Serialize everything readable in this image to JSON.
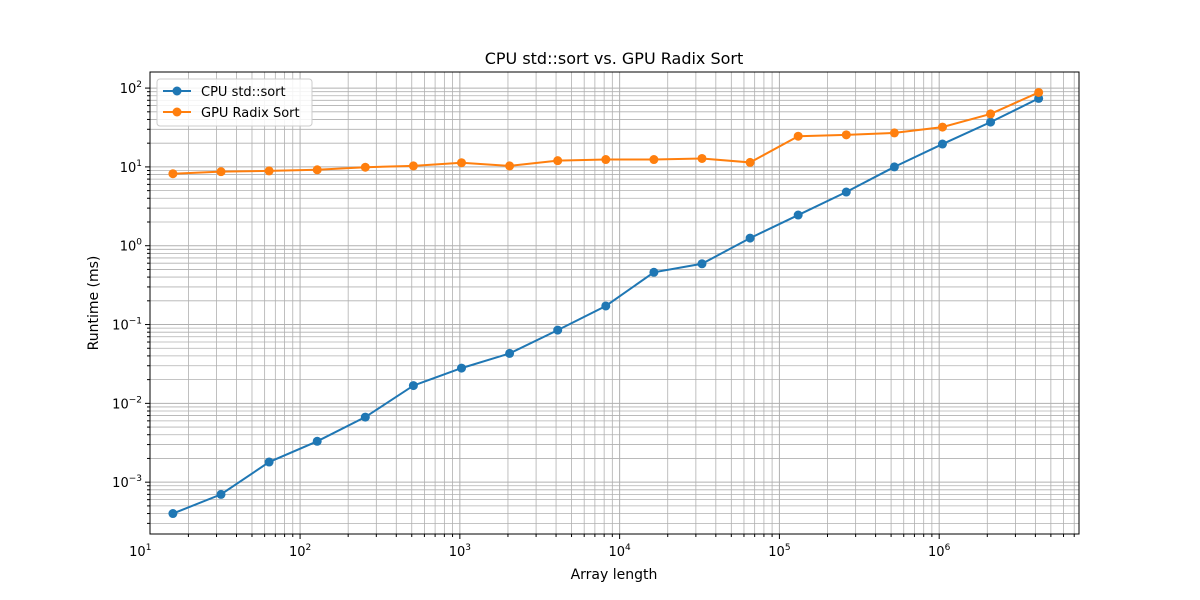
{
  "chart_data": {
    "type": "line",
    "title": "CPU std::sort vs. GPU Radix Sort",
    "xlabel": "Array length",
    "ylabel": "Runtime (ms)",
    "xscale": "log",
    "yscale": "log",
    "xlim": [
      11.5,
      7500000
    ],
    "ylim": [
      0.00022,
      160
    ],
    "grid": "both-major-minor",
    "legend_position": "upper-left",
    "x_ticks": [
      {
        "base": "10",
        "exp": "1"
      },
      {
        "base": "10",
        "exp": "2"
      },
      {
        "base": "10",
        "exp": "3"
      },
      {
        "base": "10",
        "exp": "4"
      },
      {
        "base": "10",
        "exp": "5"
      },
      {
        "base": "10",
        "exp": "6"
      }
    ],
    "y_ticks": [
      {
        "base": "10",
        "exp": "−3"
      },
      {
        "base": "10",
        "exp": "−2"
      },
      {
        "base": "10",
        "exp": "−1"
      },
      {
        "base": "10",
        "exp": "0"
      },
      {
        "base": "10",
        "exp": "1"
      },
      {
        "base": "10",
        "exp": "2"
      }
    ],
    "x": [
      16,
      32,
      64,
      128,
      256,
      512,
      1024,
      2048,
      4096,
      8192,
      16384,
      32768,
      65536,
      131072,
      262144,
      524288,
      1048576,
      2097152,
      4194304
    ],
    "series": [
      {
        "name": "CPU std::sort",
        "color": "#1f77b4",
        "values": [
          0.0004,
          0.0007,
          0.0018,
          0.0033,
          0.0067,
          0.0168,
          0.028,
          0.043,
          0.085,
          0.172,
          0.46,
          0.59,
          1.25,
          2.45,
          4.8,
          10.0,
          19.5,
          37.0,
          74.0
        ]
      },
      {
        "name": "GPU Radix Sort",
        "color": "#ff7f0e",
        "values": [
          8.2,
          8.7,
          8.9,
          9.2,
          9.9,
          10.3,
          11.3,
          10.3,
          12.0,
          12.4,
          12.4,
          12.8,
          11.4,
          24.5,
          25.5,
          27.0,
          32.0,
          47.0,
          88.0
        ]
      }
    ]
  }
}
